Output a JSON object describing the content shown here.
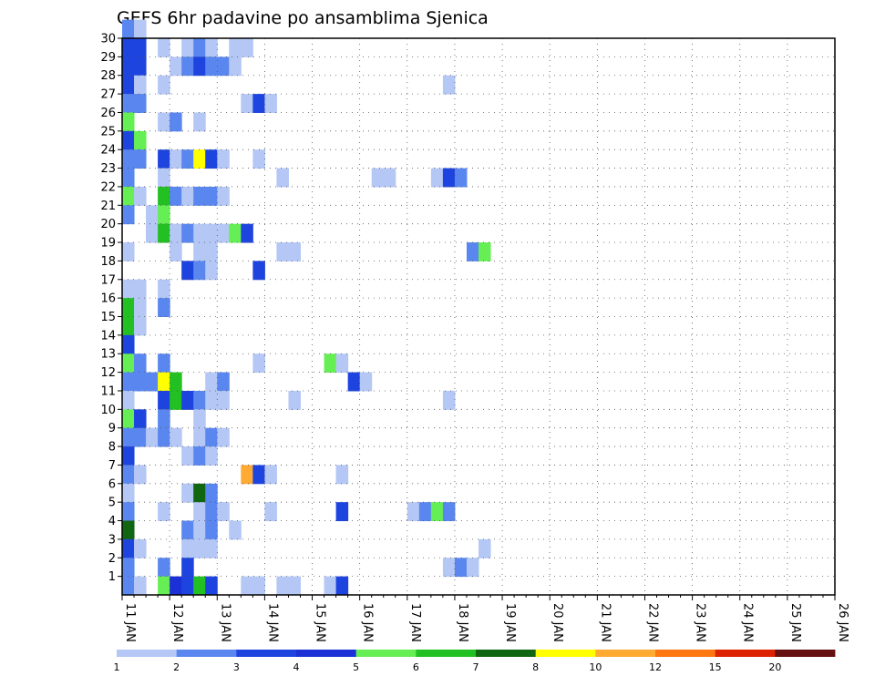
{
  "chart_data": {
    "type": "heatmap",
    "title": "GEFS 6hr padavine po ansamblima Sjenica",
    "xlabel": "",
    "ylabel": "",
    "x_ticks": [
      "11 JAN",
      "12 JAN",
      "13 JAN",
      "14 JAN",
      "15 JAN",
      "16 JAN",
      "17 JAN",
      "18 JAN",
      "19 JAN",
      "20 JAN",
      "21 JAN",
      "22 JAN",
      "23 JAN",
      "24 JAN",
      "25 JAN",
      "26 JAN"
    ],
    "x_range_days": [
      11,
      26
    ],
    "x_step_hours": 6,
    "y_ticks": [
      1,
      2,
      3,
      4,
      5,
      6,
      7,
      8,
      9,
      10,
      11,
      12,
      13,
      14,
      15,
      16,
      17,
      18,
      19,
      20,
      21,
      22,
      23,
      24,
      25,
      26,
      27,
      28,
      29,
      30
    ],
    "y_range": [
      0,
      30
    ],
    "grid": true,
    "legend": {
      "placement": "bottom",
      "labels": [
        "1",
        "2",
        "3",
        "4",
        "5",
        "6",
        "7",
        "8",
        "10",
        "12",
        "15",
        "20"
      ],
      "colors": [
        "#b4c7f5",
        "#5a87ef",
        "#1e44e0",
        "#1c30d8",
        "#66ee55",
        "#22c022",
        "#116611",
        "#ffff00",
        "#ffaa33",
        "#ff7711",
        "#dd2200",
        "#661111"
      ]
    },
    "levels": [
      1,
      2,
      3,
      4,
      5,
      6,
      7,
      8,
      10,
      12,
      15,
      20
    ],
    "cells": [
      {
        "member": 30,
        "step": 0,
        "level": 1
      },
      {
        "member": 30,
        "step": 1,
        "level": 0
      },
      {
        "member": 29,
        "step": 0,
        "level": 2
      },
      {
        "member": 29,
        "step": 1,
        "level": 2
      },
      {
        "member": 29,
        "step": 3,
        "level": 0
      },
      {
        "member": 29,
        "step": 5,
        "level": 0
      },
      {
        "member": 29,
        "step": 6,
        "level": 1
      },
      {
        "member": 29,
        "step": 7,
        "level": 0
      },
      {
        "member": 29,
        "step": 9,
        "level": 0
      },
      {
        "member": 29,
        "step": 10,
        "level": 0
      },
      {
        "member": 28,
        "step": 0,
        "level": 2
      },
      {
        "member": 28,
        "step": 1,
        "level": 2
      },
      {
        "member": 28,
        "step": 4,
        "level": 0
      },
      {
        "member": 28,
        "step": 5,
        "level": 1
      },
      {
        "member": 28,
        "step": 6,
        "level": 2
      },
      {
        "member": 28,
        "step": 7,
        "level": 1
      },
      {
        "member": 28,
        "step": 8,
        "level": 1
      },
      {
        "member": 28,
        "step": 9,
        "level": 0
      },
      {
        "member": 27,
        "step": 0,
        "level": 2
      },
      {
        "member": 27,
        "step": 1,
        "level": 0
      },
      {
        "member": 27,
        "step": 3,
        "level": 0
      },
      {
        "member": 27,
        "step": 27,
        "level": 0
      },
      {
        "member": 26,
        "step": 0,
        "level": 1
      },
      {
        "member": 26,
        "step": 1,
        "level": 1
      },
      {
        "member": 26,
        "step": 10,
        "level": 0
      },
      {
        "member": 26,
        "step": 11,
        "level": 2
      },
      {
        "member": 26,
        "step": 12,
        "level": 0
      },
      {
        "member": 25,
        "step": 0,
        "level": 4
      },
      {
        "member": 25,
        "step": 3,
        "level": 0
      },
      {
        "member": 25,
        "step": 4,
        "level": 1
      },
      {
        "member": 25,
        "step": 6,
        "level": 0
      },
      {
        "member": 24,
        "step": 0,
        "level": 2
      },
      {
        "member": 24,
        "step": 1,
        "level": 4
      },
      {
        "member": 23,
        "step": 0,
        "level": 1
      },
      {
        "member": 23,
        "step": 1,
        "level": 1
      },
      {
        "member": 23,
        "step": 3,
        "level": 2
      },
      {
        "member": 23,
        "step": 4,
        "level": 0
      },
      {
        "member": 23,
        "step": 5,
        "level": 1
      },
      {
        "member": 23,
        "step": 6,
        "level": 7
      },
      {
        "member": 23,
        "step": 7,
        "level": 2
      },
      {
        "member": 23,
        "step": 8,
        "level": 0
      },
      {
        "member": 23,
        "step": 11,
        "level": 0
      },
      {
        "member": 22,
        "step": 0,
        "level": 1
      },
      {
        "member": 22,
        "step": 3,
        "level": 0
      },
      {
        "member": 22,
        "step": 13,
        "level": 0
      },
      {
        "member": 22,
        "step": 21,
        "level": 0
      },
      {
        "member": 22,
        "step": 22,
        "level": 0
      },
      {
        "member": 22,
        "step": 26,
        "level": 0
      },
      {
        "member": 22,
        "step": 27,
        "level": 2
      },
      {
        "member": 22,
        "step": 28,
        "level": 1
      },
      {
        "member": 21,
        "step": 0,
        "level": 4
      },
      {
        "member": 21,
        "step": 1,
        "level": 0
      },
      {
        "member": 21,
        "step": 3,
        "level": 5
      },
      {
        "member": 21,
        "step": 4,
        "level": 1
      },
      {
        "member": 21,
        "step": 5,
        "level": 0
      },
      {
        "member": 21,
        "step": 6,
        "level": 1
      },
      {
        "member": 21,
        "step": 7,
        "level": 1
      },
      {
        "member": 21,
        "step": 8,
        "level": 0
      },
      {
        "member": 20,
        "step": 0,
        "level": 1
      },
      {
        "member": 20,
        "step": 2,
        "level": 0
      },
      {
        "member": 20,
        "step": 3,
        "level": 4
      },
      {
        "member": 19,
        "step": 2,
        "level": 0
      },
      {
        "member": 19,
        "step": 2,
        "level": 0
      },
      {
        "member": 19,
        "step": 3,
        "level": 5
      },
      {
        "member": 19,
        "step": 4,
        "level": 0
      },
      {
        "member": 19,
        "step": 5,
        "level": 1
      },
      {
        "member": 19,
        "step": 6,
        "level": 0
      },
      {
        "member": 19,
        "step": 7,
        "level": 0
      },
      {
        "member": 19,
        "step": 8,
        "level": 0
      },
      {
        "member": 19,
        "step": 9,
        "level": 4
      },
      {
        "member": 19,
        "step": 10,
        "level": 2
      },
      {
        "member": 18,
        "step": 0,
        "level": 0
      },
      {
        "member": 18,
        "step": 4,
        "level": 0
      },
      {
        "member": 18,
        "step": 6,
        "level": 0
      },
      {
        "member": 18,
        "step": 7,
        "level": 0
      },
      {
        "member": 18,
        "step": 13,
        "level": 0
      },
      {
        "member": 18,
        "step": 14,
        "level": 0
      },
      {
        "member": 18,
        "step": 29,
        "level": 1
      },
      {
        "member": 18,
        "step": 30,
        "level": 4
      },
      {
        "member": 17,
        "step": 5,
        "level": 2
      },
      {
        "member": 17,
        "step": 6,
        "level": 1
      },
      {
        "member": 17,
        "step": 7,
        "level": 0
      },
      {
        "member": 17,
        "step": 11,
        "level": 2
      },
      {
        "member": 16,
        "step": 0,
        "level": 0
      },
      {
        "member": 16,
        "step": 1,
        "level": 0
      },
      {
        "member": 16,
        "step": 3,
        "level": 0
      },
      {
        "member": 15,
        "step": 0,
        "level": 5
      },
      {
        "member": 15,
        "step": 1,
        "level": 0
      },
      {
        "member": 15,
        "step": 3,
        "level": 1
      },
      {
        "member": 14,
        "step": 0,
        "level": 5
      },
      {
        "member": 14,
        "step": 1,
        "level": 0
      },
      {
        "member": 13,
        "step": 0,
        "level": 2
      },
      {
        "member": 12,
        "step": 0,
        "level": 4
      },
      {
        "member": 12,
        "step": 1,
        "level": 1
      },
      {
        "member": 12,
        "step": 3,
        "level": 1
      },
      {
        "member": 12,
        "step": 11,
        "level": 0
      },
      {
        "member": 12,
        "step": 17,
        "level": 4
      },
      {
        "member": 12,
        "step": 18,
        "level": 0
      },
      {
        "member": 11,
        "step": 0,
        "level": 1
      },
      {
        "member": 11,
        "step": 1,
        "level": 1
      },
      {
        "member": 11,
        "step": 2,
        "level": 1
      },
      {
        "member": 11,
        "step": 3,
        "level": 7
      },
      {
        "member": 11,
        "step": 4,
        "level": 5
      },
      {
        "member": 11,
        "step": 7,
        "level": 0
      },
      {
        "member": 11,
        "step": 8,
        "level": 1
      },
      {
        "member": 11,
        "step": 19,
        "level": 2
      },
      {
        "member": 11,
        "step": 20,
        "level": 0
      },
      {
        "member": 10,
        "step": 0,
        "level": 0
      },
      {
        "member": 10,
        "step": 3,
        "level": 2
      },
      {
        "member": 10,
        "step": 4,
        "level": 5
      },
      {
        "member": 10,
        "step": 5,
        "level": 2
      },
      {
        "member": 10,
        "step": 6,
        "level": 1
      },
      {
        "member": 10,
        "step": 7,
        "level": 0
      },
      {
        "member": 10,
        "step": 8,
        "level": 0
      },
      {
        "member": 10,
        "step": 14,
        "level": 0
      },
      {
        "member": 10,
        "step": 27,
        "level": 0
      },
      {
        "member": 9,
        "step": 0,
        "level": 4
      },
      {
        "member": 9,
        "step": 1,
        "level": 2
      },
      {
        "member": 9,
        "step": 3,
        "level": 1
      },
      {
        "member": 9,
        "step": 6,
        "level": 0
      },
      {
        "member": 8,
        "step": 0,
        "level": 1
      },
      {
        "member": 8,
        "step": 1,
        "level": 1
      },
      {
        "member": 8,
        "step": 2,
        "level": 0
      },
      {
        "member": 8,
        "step": 3,
        "level": 1
      },
      {
        "member": 8,
        "step": 4,
        "level": 0
      },
      {
        "member": 8,
        "step": 6,
        "level": 0
      },
      {
        "member": 8,
        "step": 7,
        "level": 1
      },
      {
        "member": 8,
        "step": 8,
        "level": 0
      },
      {
        "member": 7,
        "step": 0,
        "level": 2
      },
      {
        "member": 7,
        "step": 5,
        "level": 0
      },
      {
        "member": 7,
        "step": 6,
        "level": 1
      },
      {
        "member": 7,
        "step": 7,
        "level": 0
      },
      {
        "member": 6,
        "step": 0,
        "level": 1
      },
      {
        "member": 6,
        "step": 1,
        "level": 0
      },
      {
        "member": 6,
        "step": 10,
        "level": 8
      },
      {
        "member": 6,
        "step": 11,
        "level": 2
      },
      {
        "member": 6,
        "step": 12,
        "level": 0
      },
      {
        "member": 6,
        "step": 18,
        "level": 0
      },
      {
        "member": 5,
        "step": 0,
        "level": 0
      },
      {
        "member": 5,
        "step": 5,
        "level": 0
      },
      {
        "member": 5,
        "step": 6,
        "level": 6
      },
      {
        "member": 5,
        "step": 7,
        "level": 1
      },
      {
        "member": 4,
        "step": 0,
        "level": 1
      },
      {
        "member": 4,
        "step": 3,
        "level": 0
      },
      {
        "member": 4,
        "step": 6,
        "level": 0
      },
      {
        "member": 4,
        "step": 7,
        "level": 1
      },
      {
        "member": 4,
        "step": 8,
        "level": 0
      },
      {
        "member": 4,
        "step": 12,
        "level": 0
      },
      {
        "member": 4,
        "step": 18,
        "level": 2
      },
      {
        "member": 4,
        "step": 24,
        "level": 0
      },
      {
        "member": 4,
        "step": 25,
        "level": 1
      },
      {
        "member": 4,
        "step": 26,
        "level": 4
      },
      {
        "member": 4,
        "step": 27,
        "level": 1
      },
      {
        "member": 3,
        "step": 0,
        "level": 6
      },
      {
        "member": 3,
        "step": 5,
        "level": 1
      },
      {
        "member": 3,
        "step": 6,
        "level": 0
      },
      {
        "member": 3,
        "step": 7,
        "level": 1
      },
      {
        "member": 3,
        "step": 9,
        "level": 0
      },
      {
        "member": 2,
        "step": 0,
        "level": 2
      },
      {
        "member": 2,
        "step": 1,
        "level": 0
      },
      {
        "member": 2,
        "step": 5,
        "level": 0
      },
      {
        "member": 2,
        "step": 6,
        "level": 0
      },
      {
        "member": 2,
        "step": 7,
        "level": 0
      },
      {
        "member": 2,
        "step": 30,
        "level": 0
      },
      {
        "member": 1,
        "step": 0,
        "level": 1
      },
      {
        "member": 1,
        "step": 3,
        "level": 1
      },
      {
        "member": 1,
        "step": 5,
        "level": 2
      },
      {
        "member": 1,
        "step": 27,
        "level": 0
      },
      {
        "member": 1,
        "step": 28,
        "level": 1
      },
      {
        "member": 1,
        "step": 29,
        "level": 0
      },
      {
        "member": 0,
        "step": 0,
        "level": 1
      },
      {
        "member": 0,
        "step": 1,
        "level": 0
      },
      {
        "member": 0,
        "step": 3,
        "level": 4
      },
      {
        "member": 0,
        "step": 4,
        "level": 3
      },
      {
        "member": 0,
        "step": 5,
        "level": 2
      },
      {
        "member": 0,
        "step": 6,
        "level": 5
      },
      {
        "member": 0,
        "step": 7,
        "level": 2
      },
      {
        "member": 0,
        "step": 10,
        "level": 0
      },
      {
        "member": 0,
        "step": 11,
        "level": 0
      },
      {
        "member": 0,
        "step": 13,
        "level": 0
      },
      {
        "member": 0,
        "step": 14,
        "level": 0
      },
      {
        "member": 0,
        "step": 17,
        "level": 0
      },
      {
        "member": 0,
        "step": 18,
        "level": 2
      }
    ]
  }
}
